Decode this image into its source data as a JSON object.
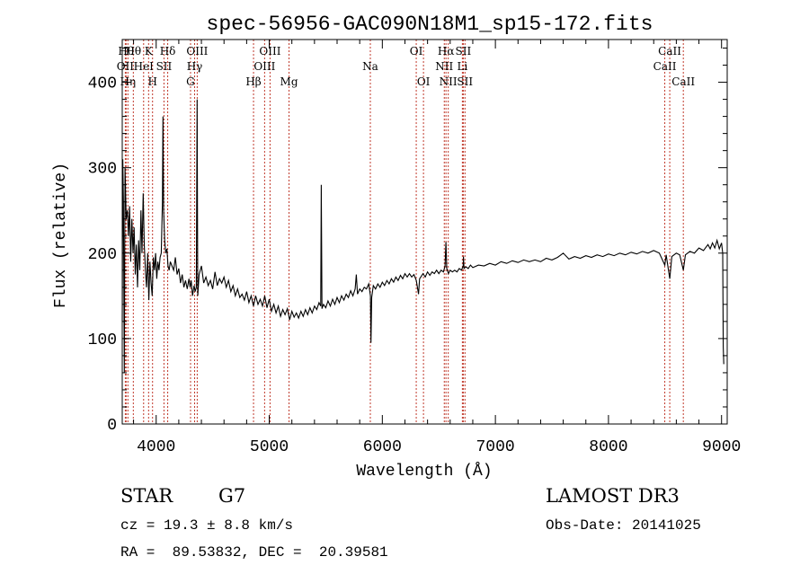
{
  "chart_data": {
    "type": "line",
    "title": "spec-56956-GAC090N18M1_sp15-172.fits",
    "xlabel": "Wavelength (Å)",
    "ylabel": "Flux (relative)",
    "xlim": [
      3700,
      9050
    ],
    "ylim": [
      0,
      450
    ],
    "x_ticks": [
      4000,
      5000,
      6000,
      7000,
      8000,
      9000
    ],
    "x_tick_labels": [
      "4000",
      "5000",
      "6000",
      "7000",
      "8000",
      "9000"
    ],
    "y_ticks": [
      0,
      100,
      200,
      300,
      400
    ],
    "y_tick_labels": [
      "0",
      "100",
      "200",
      "300",
      "400"
    ],
    "grid": false,
    "series": [
      {
        "values": [
          [
            3700,
            120
          ],
          [
            3705,
            310
          ],
          [
            3710,
            260
          ],
          [
            3718,
            60
          ],
          [
            3725,
            300
          ],
          [
            3735,
            240
          ],
          [
            3745,
            250
          ],
          [
            3755,
            220
          ],
          [
            3765,
            255
          ],
          [
            3775,
            190
          ],
          [
            3785,
            240
          ],
          [
            3795,
            200
          ],
          [
            3805,
            230
          ],
          [
            3815,
            175
          ],
          [
            3825,
            210
          ],
          [
            3835,
            160
          ],
          [
            3845,
            215
          ],
          [
            3855,
            180
          ],
          [
            3865,
            250
          ],
          [
            3875,
            200
          ],
          [
            3885,
            270
          ],
          [
            3895,
            210
          ],
          [
            3905,
            180
          ],
          [
            3915,
            160
          ],
          [
            3925,
            200
          ],
          [
            3935,
            145
          ],
          [
            3945,
            190
          ],
          [
            3955,
            165
          ],
          [
            3965,
            150
          ],
          [
            3975,
            195
          ],
          [
            3985,
            180
          ],
          [
            3995,
            200
          ],
          [
            4005,
            170
          ],
          [
            4015,
            190
          ],
          [
            4025,
            180
          ],
          [
            4035,
            195
          ],
          [
            4045,
            200
          ],
          [
            4055,
            260
          ],
          [
            4060,
            360
          ],
          [
            4066,
            250
          ],
          [
            4075,
            215
          ],
          [
            4085,
            200
          ],
          [
            4095,
            205
          ],
          [
            4105,
            185
          ],
          [
            4115,
            180
          ],
          [
            4125,
            190
          ],
          [
            4140,
            185
          ],
          [
            4155,
            180
          ],
          [
            4170,
            195
          ],
          [
            4185,
            175
          ],
          [
            4200,
            182
          ],
          [
            4215,
            165
          ],
          [
            4230,
            175
          ],
          [
            4245,
            160
          ],
          [
            4260,
            168
          ],
          [
            4275,
            158
          ],
          [
            4290,
            170
          ],
          [
            4300,
            160
          ],
          [
            4310,
            168
          ],
          [
            4322,
            150
          ],
          [
            4335,
            162
          ],
          [
            4345,
            155
          ],
          [
            4355,
            160
          ],
          [
            4362,
            380
          ],
          [
            4368,
            150
          ],
          [
            4380,
            175
          ],
          [
            4400,
            185
          ],
          [
            4420,
            165
          ],
          [
            4440,
            172
          ],
          [
            4460,
            162
          ],
          [
            4480,
            168
          ],
          [
            4500,
            158
          ],
          [
            4520,
            178
          ],
          [
            4540,
            162
          ],
          [
            4560,
            170
          ],
          [
            4580,
            165
          ],
          [
            4600,
            172
          ],
          [
            4620,
            160
          ],
          [
            4640,
            168
          ],
          [
            4660,
            155
          ],
          [
            4680,
            162
          ],
          [
            4700,
            150
          ],
          [
            4720,
            158
          ],
          [
            4740,
            148
          ],
          [
            4760,
            152
          ],
          [
            4780,
            145
          ],
          [
            4800,
            155
          ],
          [
            4820,
            142
          ],
          [
            4840,
            150
          ],
          [
            4861,
            138
          ],
          [
            4880,
            150
          ],
          [
            4900,
            140
          ],
          [
            4920,
            146
          ],
          [
            4940,
            138
          ],
          [
            4960,
            150
          ],
          [
            4980,
            136
          ],
          [
            5000,
            146
          ],
          [
            5020,
            132
          ],
          [
            5040,
            140
          ],
          [
            5060,
            130
          ],
          [
            5080,
            138
          ],
          [
            5100,
            126
          ],
          [
            5120,
            134
          ],
          [
            5140,
            128
          ],
          [
            5160,
            135
          ],
          [
            5180,
            122
          ],
          [
            5200,
            132
          ],
          [
            5220,
            125
          ],
          [
            5240,
            130
          ],
          [
            5260,
            124
          ],
          [
            5280,
            132
          ],
          [
            5300,
            126
          ],
          [
            5320,
            134
          ],
          [
            5340,
            128
          ],
          [
            5360,
            136
          ],
          [
            5380,
            130
          ],
          [
            5400,
            138
          ],
          [
            5420,
            134
          ],
          [
            5440,
            142
          ],
          [
            5455,
            138
          ],
          [
            5460,
            280
          ],
          [
            5466,
            135
          ],
          [
            5480,
            140
          ],
          [
            5500,
            136
          ],
          [
            5520,
            144
          ],
          [
            5540,
            138
          ],
          [
            5560,
            146
          ],
          [
            5580,
            140
          ],
          [
            5600,
            148
          ],
          [
            5620,
            142
          ],
          [
            5640,
            150
          ],
          [
            5660,
            145
          ],
          [
            5680,
            152
          ],
          [
            5700,
            148
          ],
          [
            5720,
            156
          ],
          [
            5740,
            150
          ],
          [
            5760,
            158
          ],
          [
            5770,
            175
          ],
          [
            5780,
            152
          ],
          [
            5800,
            158
          ],
          [
            5820,
            155
          ],
          [
            5840,
            160
          ],
          [
            5860,
            158
          ],
          [
            5880,
            164
          ],
          [
            5895,
            150
          ],
          [
            5900,
            95
          ],
          [
            5906,
            148
          ],
          [
            5920,
            162
          ],
          [
            5940,
            158
          ],
          [
            5960,
            164
          ],
          [
            5980,
            160
          ],
          [
            6000,
            166
          ],
          [
            6020,
            162
          ],
          [
            6040,
            168
          ],
          [
            6060,
            164
          ],
          [
            6080,
            170
          ],
          [
            6100,
            166
          ],
          [
            6120,
            172
          ],
          [
            6140,
            168
          ],
          [
            6160,
            174
          ],
          [
            6180,
            170
          ],
          [
            6200,
            176
          ],
          [
            6220,
            172
          ],
          [
            6240,
            176
          ],
          [
            6260,
            172
          ],
          [
            6280,
            175
          ],
          [
            6300,
            168
          ],
          [
            6320,
            152
          ],
          [
            6330,
            170
          ],
          [
            6340,
            172
          ],
          [
            6360,
            176
          ],
          [
            6380,
            172
          ],
          [
            6400,
            178
          ],
          [
            6420,
            174
          ],
          [
            6440,
            178
          ],
          [
            6460,
            176
          ],
          [
            6480,
            180
          ],
          [
            6500,
            176
          ],
          [
            6520,
            180
          ],
          [
            6540,
            178
          ],
          [
            6555,
            185
          ],
          [
            6563,
            213
          ],
          [
            6570,
            182
          ],
          [
            6585,
            176
          ],
          [
            6600,
            180
          ],
          [
            6620,
            178
          ],
          [
            6640,
            180
          ],
          [
            6660,
            178
          ],
          [
            6680,
            182
          ],
          [
            6700,
            180
          ],
          [
            6715,
            185
          ],
          [
            6718,
            196
          ],
          [
            6722,
            182
          ],
          [
            6740,
            184
          ],
          [
            6760,
            182
          ],
          [
            6780,
            186
          ],
          [
            6800,
            183
          ],
          [
            6850,
            186
          ],
          [
            6900,
            185
          ],
          [
            6950,
            188
          ],
          [
            7000,
            186
          ],
          [
            7050,
            190
          ],
          [
            7100,
            188
          ],
          [
            7150,
            191
          ],
          [
            7200,
            189
          ],
          [
            7250,
            192
          ],
          [
            7300,
            190
          ],
          [
            7350,
            192
          ],
          [
            7400,
            190
          ],
          [
            7450,
            194
          ],
          [
            7500,
            192
          ],
          [
            7550,
            195
          ],
          [
            7600,
            200
          ],
          [
            7650,
            193
          ],
          [
            7700,
            196
          ],
          [
            7750,
            194
          ],
          [
            7800,
            197
          ],
          [
            7850,
            195
          ],
          [
            7900,
            198
          ],
          [
            7950,
            196
          ],
          [
            8000,
            199
          ],
          [
            8050,
            197
          ],
          [
            8100,
            200
          ],
          [
            8150,
            198
          ],
          [
            8200,
            201
          ],
          [
            8250,
            199
          ],
          [
            8300,
            202
          ],
          [
            8350,
            200
          ],
          [
            8400,
            203
          ],
          [
            8450,
            200
          ],
          [
            8498,
            186
          ],
          [
            8510,
            198
          ],
          [
            8542,
            170
          ],
          [
            8560,
            196
          ],
          [
            8600,
            200
          ],
          [
            8630,
            198
          ],
          [
            8662,
            180
          ],
          [
            8680,
            198
          ],
          [
            8720,
            202
          ],
          [
            8760,
            200
          ],
          [
            8800,
            206
          ],
          [
            8840,
            203
          ],
          [
            8880,
            210
          ],
          [
            8900,
            205
          ],
          [
            8920,
            212
          ],
          [
            8940,
            206
          ],
          [
            8960,
            215
          ],
          [
            8980,
            205
          ],
          [
            9000,
            212
          ],
          [
            9010,
            200
          ],
          [
            9015,
            90
          ],
          [
            9020,
            70
          ]
        ]
      }
    ],
    "line_markers": [
      {
        "x": 3727,
        "label": "OII",
        "row": 2
      },
      {
        "x": 3734,
        "label": "Hθ",
        "row": 1
      },
      {
        "x": 3750,
        "label": "Hη",
        "row": 3
      },
      {
        "x": 3798,
        "label": "Hθ",
        "row": 1
      },
      {
        "x": 3889,
        "label": "HeI",
        "row": 2
      },
      {
        "x": 3933,
        "label": "K",
        "row": 1
      },
      {
        "x": 3968,
        "label": "H",
        "row": 3
      },
      {
        "x": 4069,
        "label": "SII",
        "row": 2
      },
      {
        "x": 4102,
        "label": "Hδ",
        "row": 1
      },
      {
        "x": 4304,
        "label": "G",
        "row": 3
      },
      {
        "x": 4340,
        "label": "Hγ",
        "row": 2
      },
      {
        "x": 4363,
        "label": "OIII",
        "row": 1
      },
      {
        "x": 4861,
        "label": "Hβ",
        "row": 3
      },
      {
        "x": 4959,
        "label": "OIII",
        "row": 2
      },
      {
        "x": 5007,
        "label": "OIII",
        "row": 1
      },
      {
        "x": 5175,
        "label": "Mg",
        "row": 3
      },
      {
        "x": 5894,
        "label": "Na",
        "row": 2
      },
      {
        "x": 6300,
        "label": "OI",
        "row": 1
      },
      {
        "x": 6364,
        "label": "OI",
        "row": 3
      },
      {
        "x": 6548,
        "label": "NII",
        "row": 2
      },
      {
        "x": 6563,
        "label": "Hα",
        "row": 1
      },
      {
        "x": 6583,
        "label": "NII",
        "row": 3
      },
      {
        "x": 6708,
        "label": "Li",
        "row": 2
      },
      {
        "x": 6716,
        "label": "SII",
        "row": 1
      },
      {
        "x": 6731,
        "label": "SII",
        "row": 3
      },
      {
        "x": 8498,
        "label": "CaII",
        "row": 2
      },
      {
        "x": 8542,
        "label": "CaII",
        "row": 1
      },
      {
        "x": 8662,
        "label": "CaII",
        "row": 3
      }
    ]
  },
  "info": {
    "object_class": "STAR",
    "subclass": "G7",
    "survey": "LAMOST DR3",
    "cz": "cz = 19.3 ± 8.8 km/s",
    "obs_date": "Obs-Date: 20141025",
    "coords": "RA =  89.53832, DEC =  20.39581"
  },
  "colors": {
    "spectrum": "#000000",
    "marker": "#c0392b"
  }
}
